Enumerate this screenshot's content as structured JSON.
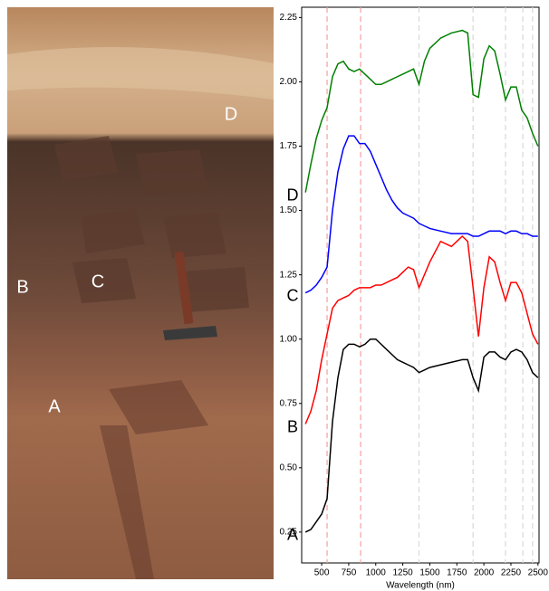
{
  "photo_labels": [
    "A",
    "B",
    "C",
    "D"
  ],
  "chart_data": {
    "type": "line",
    "xlabel": "Wavelength (nm)",
    "x": [
      350,
      400,
      450,
      500,
      550,
      600,
      650,
      700,
      750,
      800,
      850,
      900,
      950,
      1000,
      1050,
      1100,
      1150,
      1200,
      1250,
      1300,
      1350,
      1400,
      1450,
      1500,
      1600,
      1700,
      1800,
      1850,
      1900,
      1950,
      2000,
      2050,
      2100,
      2150,
      2200,
      2250,
      2300,
      2350,
      2400,
      2450,
      2500
    ],
    "series": [
      {
        "name": "A",
        "color": "#000000",
        "values": [
          0.25,
          0.26,
          0.29,
          0.32,
          0.38,
          0.68,
          0.85,
          0.96,
          0.98,
          0.98,
          0.97,
          0.98,
          1.0,
          1.0,
          0.98,
          0.96,
          0.94,
          0.92,
          0.91,
          0.9,
          0.89,
          0.87,
          0.88,
          0.89,
          0.9,
          0.91,
          0.92,
          0.92,
          0.85,
          0.8,
          0.93,
          0.95,
          0.95,
          0.93,
          0.92,
          0.95,
          0.96,
          0.95,
          0.92,
          0.87,
          0.85
        ]
      },
      {
        "name": "B",
        "color": "#ff0000",
        "values": [
          0.67,
          0.72,
          0.8,
          0.92,
          1.02,
          1.12,
          1.15,
          1.16,
          1.17,
          1.19,
          1.2,
          1.2,
          1.2,
          1.21,
          1.21,
          1.22,
          1.23,
          1.24,
          1.26,
          1.28,
          1.27,
          1.2,
          1.25,
          1.3,
          1.38,
          1.36,
          1.4,
          1.38,
          1.2,
          1.01,
          1.2,
          1.32,
          1.3,
          1.22,
          1.15,
          1.22,
          1.22,
          1.18,
          1.1,
          1.02,
          0.98
        ]
      },
      {
        "name": "C",
        "color": "#0000ff",
        "values": [
          1.18,
          1.19,
          1.21,
          1.24,
          1.28,
          1.5,
          1.65,
          1.74,
          1.79,
          1.79,
          1.76,
          1.76,
          1.73,
          1.68,
          1.63,
          1.58,
          1.54,
          1.51,
          1.49,
          1.48,
          1.47,
          1.45,
          1.44,
          1.43,
          1.42,
          1.41,
          1.41,
          1.41,
          1.4,
          1.4,
          1.41,
          1.42,
          1.42,
          1.42,
          1.41,
          1.42,
          1.42,
          1.41,
          1.41,
          1.4,
          1.4
        ]
      },
      {
        "name": "D",
        "color": "#008000",
        "values": [
          1.57,
          1.68,
          1.78,
          1.85,
          1.9,
          2.02,
          2.07,
          2.08,
          2.05,
          2.04,
          2.05,
          2.03,
          2.01,
          1.99,
          1.99,
          2.0,
          2.01,
          2.02,
          2.03,
          2.04,
          2.05,
          1.99,
          2.08,
          2.13,
          2.17,
          2.19,
          2.2,
          2.19,
          1.95,
          1.94,
          2.09,
          2.14,
          2.12,
          2.03,
          1.93,
          1.98,
          1.98,
          1.89,
          1.86,
          1.8,
          1.75
        ]
      }
    ],
    "vlines": [
      {
        "value": 550,
        "color": "#f4a0a0"
      },
      {
        "value": 860,
        "color": "#f4a0a0"
      },
      {
        "value": 1400,
        "color": "#d8d8d8"
      },
      {
        "value": 1900,
        "color": "#d8d8d8"
      },
      {
        "value": 2200,
        "color": "#d8d8d8"
      },
      {
        "value": 2360,
        "color": "#d8d8d8"
      },
      {
        "value": 2450,
        "color": "#d8d8d8"
      }
    ],
    "xlim": [
      315,
      2510
    ],
    "ylim": [
      0.13,
      2.29
    ],
    "xticks": [
      500,
      750,
      1000,
      1250,
      1500,
      1750,
      2000,
      2250,
      2500
    ],
    "yticks": [
      0.25,
      {
        "value": 0.5,
        "label": "0.50"
      },
      0.75,
      {
        "value": 1,
        "label": "1.00"
      },
      1.25,
      {
        "value": 1.5,
        "label": "1.50"
      },
      1.75,
      {
        "value": 2,
        "label": "2.00"
      },
      2.25
    ]
  }
}
